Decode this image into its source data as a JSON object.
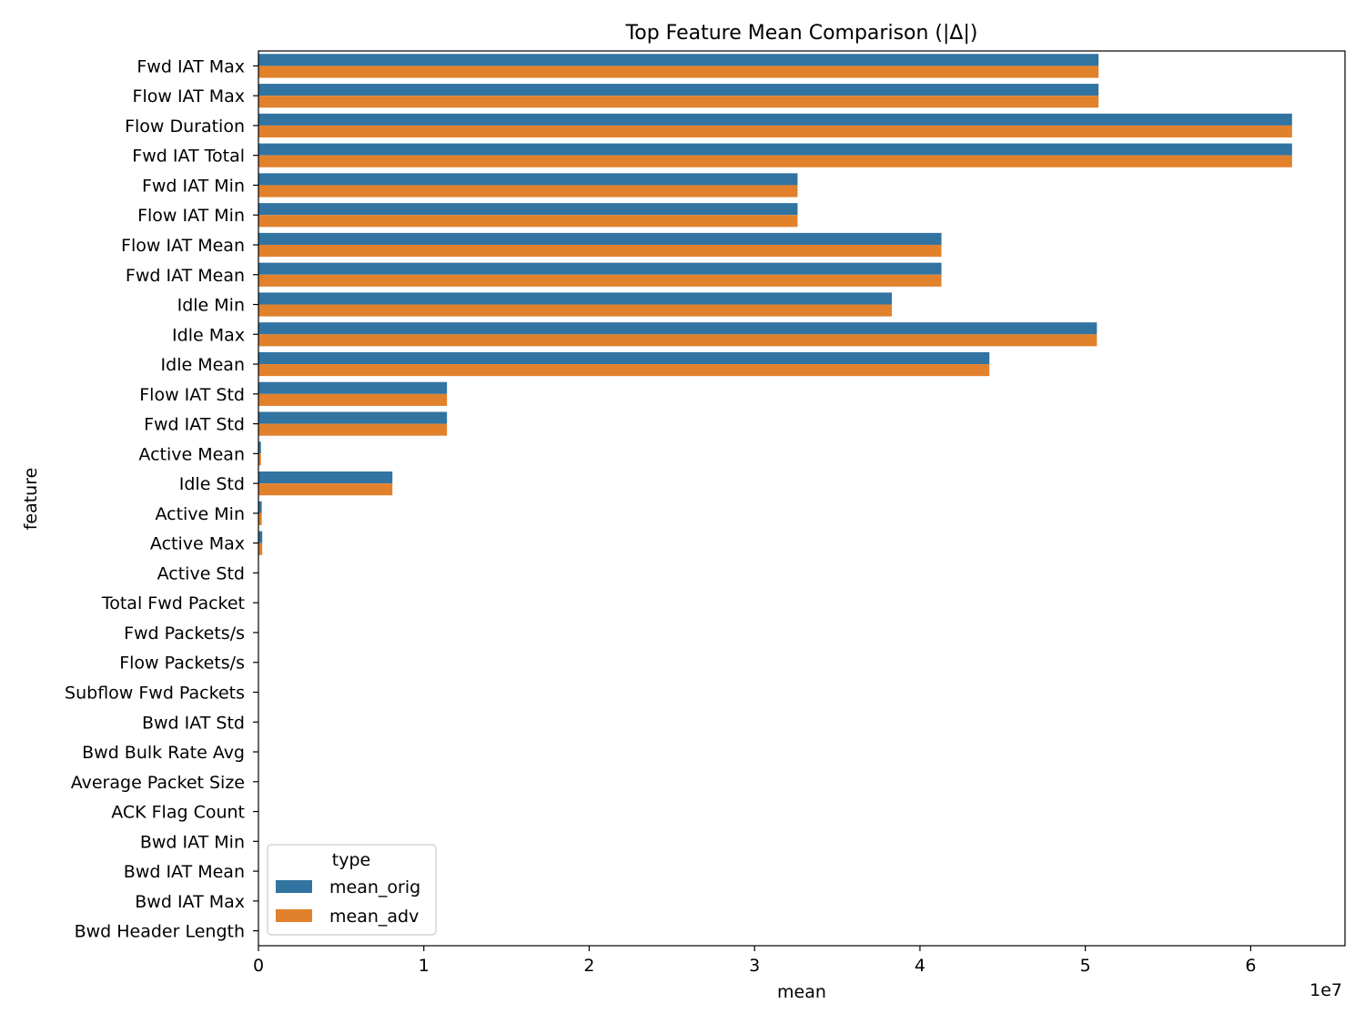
{
  "chart_data": {
    "type": "bar",
    "orientation": "horizontal",
    "title": "Top Feature Mean Comparison (|Δ|)",
    "xlabel": "mean",
    "ylabel": "feature",
    "x_scale_label": "1e7",
    "xlim": [
      0,
      65700000.0
    ],
    "xticks": [
      0,
      10000000.0,
      20000000.0,
      30000000.0,
      40000000.0,
      50000000.0,
      60000000.0
    ],
    "xtick_labels": [
      "0",
      "1",
      "2",
      "3",
      "4",
      "5",
      "6"
    ],
    "grid": false,
    "legend": {
      "title": "type",
      "placement": "lower-left"
    },
    "categories": [
      "Fwd IAT Max",
      "Flow IAT Max",
      "Flow Duration",
      "Fwd IAT Total",
      "Fwd IAT Min",
      "Flow IAT Min",
      "Flow IAT Mean",
      "Fwd IAT Mean",
      "Idle Min",
      "Idle Max",
      "Idle Mean",
      "Flow IAT Std",
      "Fwd IAT Std",
      "Active Mean",
      "Idle Std",
      "Active Min",
      "Active Max",
      "Active Std",
      "Total Fwd Packet",
      "Fwd Packets/s",
      "Flow Packets/s",
      "Subflow Fwd Packets",
      "Bwd IAT Std",
      "Bwd Bulk Rate Avg",
      "Average Packet Size",
      "ACK Flag Count",
      "Bwd IAT Min",
      "Bwd IAT Mean",
      "Bwd IAT Max",
      "Bwd Header Length"
    ],
    "series": [
      {
        "name": "mean_orig",
        "color": "#3274a1",
        "values": [
          50800000,
          50800000,
          62500000,
          62500000,
          32600000,
          32600000,
          41300000,
          41300000,
          38300000,
          50700000,
          44200000,
          11400000,
          11400000,
          150000,
          8100000,
          200000,
          230000,
          20000,
          0,
          0,
          0,
          0,
          0,
          0,
          0,
          0,
          0,
          0,
          0,
          0
        ]
      },
      {
        "name": "mean_adv",
        "color": "#e1812c",
        "values": [
          50800000,
          50800000,
          62500000,
          62500000,
          32600000,
          32600000,
          41300000,
          41300000,
          38300000,
          50700000,
          44200000,
          11400000,
          11400000,
          150000,
          8100000,
          200000,
          230000,
          20000,
          0,
          0,
          0,
          0,
          0,
          0,
          0,
          0,
          0,
          0,
          0,
          0
        ]
      }
    ]
  }
}
